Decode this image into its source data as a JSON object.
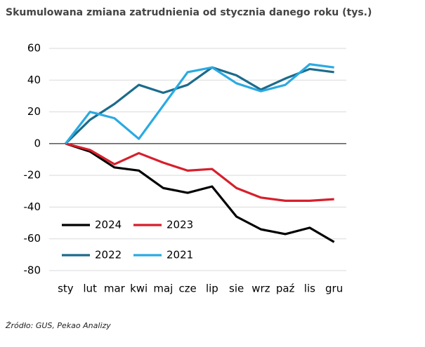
{
  "chart_data": {
    "type": "line",
    "title": "Skumulowana zmiana zatrudnienia od stycznia danego roku (tys.)",
    "source": "Źródło: GUS, Pekao Analizy",
    "categories": [
      "sty",
      "lut",
      "mar",
      "kwi",
      "maj",
      "cze",
      "lip",
      "sie",
      "wrz",
      "paź",
      "lis",
      "gru"
    ],
    "series": [
      {
        "name": "2024",
        "color": "#000000",
        "values": [
          0,
          -5,
          -15,
          -17,
          -28,
          -31,
          -27,
          -46,
          -54,
          -57,
          -53,
          -62
        ]
      },
      {
        "name": "2023",
        "color": "#d71f2b",
        "values": [
          0,
          -4,
          -13,
          -6,
          -12,
          -17,
          -16,
          -28,
          -34,
          -36,
          -36,
          -35
        ]
      },
      {
        "name": "2022",
        "color": "#1b6b8c",
        "values": [
          0,
          15,
          25,
          37,
          32,
          37,
          48,
          43,
          34,
          41,
          47,
          45
        ]
      },
      {
        "name": "2021",
        "color": "#2aaae2",
        "values": [
          0,
          20,
          16,
          3,
          24,
          45,
          48,
          38,
          33,
          37,
          50,
          48
        ]
      }
    ],
    "ylim": [
      -80,
      60
    ],
    "yticks": [
      -80,
      -60,
      -40,
      -20,
      0,
      20,
      40,
      60
    ],
    "grid": true,
    "legend": "lower left"
  }
}
